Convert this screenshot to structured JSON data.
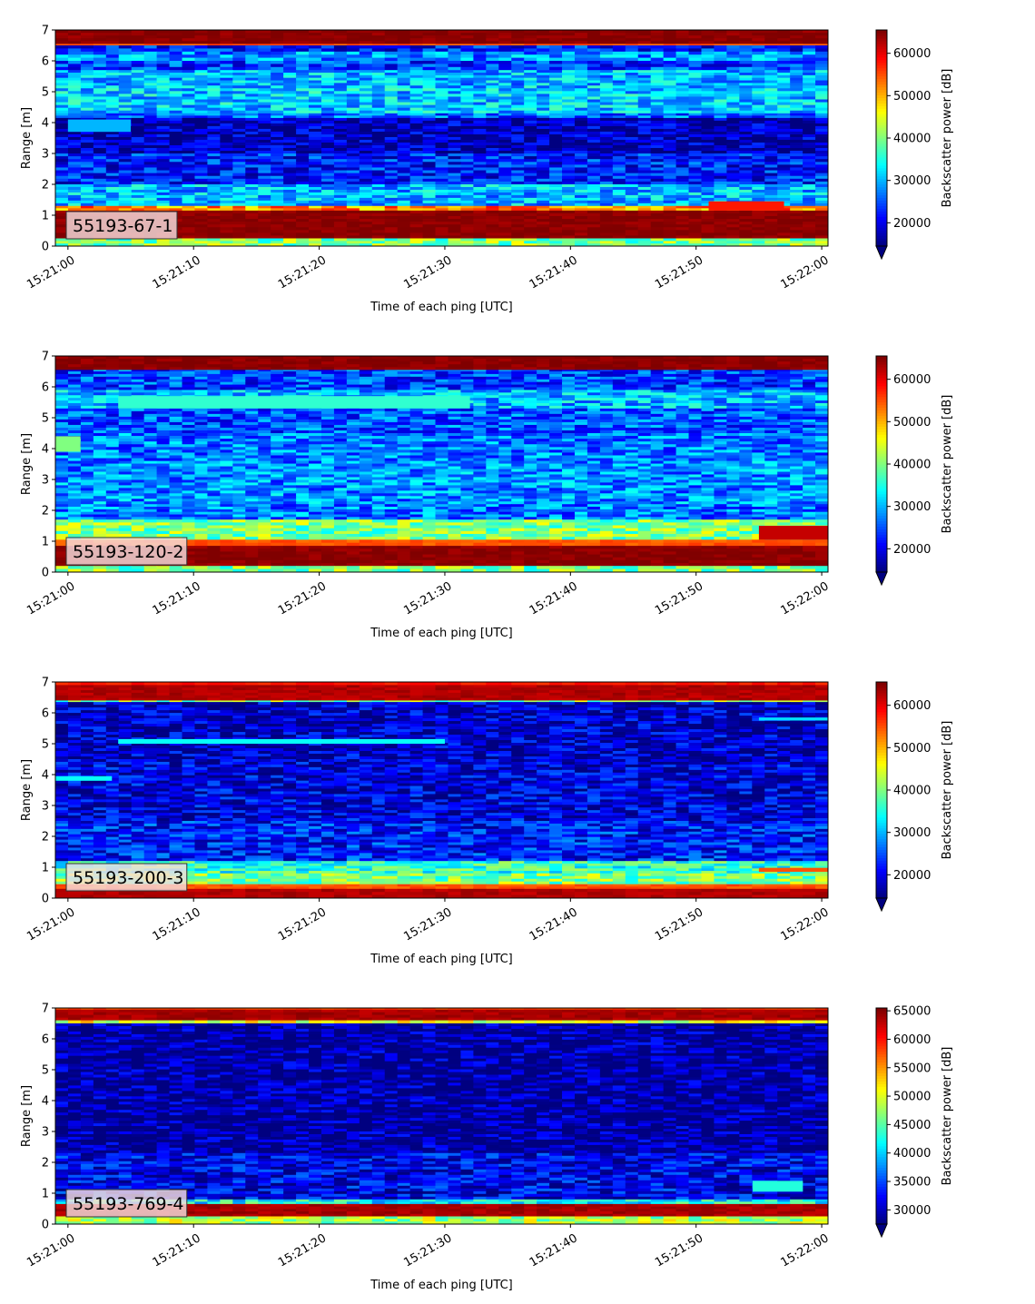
{
  "chart_data": [
    {
      "type": "heatmap",
      "label": "55193-67-1",
      "xlabel": "Time of each ping [UTC]",
      "ylabel": "Range [m]",
      "colorbar_label": "Backscatter power [dB]",
      "colormap": "jet",
      "x_ticks": [
        "15:21:00",
        "15:21:10",
        "15:21:20",
        "15:21:30",
        "15:21:40",
        "15:21:50",
        "15:22:00"
      ],
      "x_range": [
        "15:20:59",
        "15:22:00.5"
      ],
      "ylim": [
        0,
        7
      ],
      "y_ticks": [
        0,
        1,
        2,
        3,
        4,
        5,
        6,
        7
      ],
      "color_range": [
        14500,
        65500
      ],
      "colorbar_ticks": [
        20000,
        30000,
        40000,
        50000,
        60000
      ],
      "range_profile": [
        {
          "y": [
            6.55,
            7.0
          ],
          "value": 65000
        },
        {
          "y": [
            6.5,
            6.55
          ],
          "value": 55000
        },
        {
          "y": [
            6.3,
            6.5
          ],
          "value": 22000
        },
        {
          "y": [
            6.0,
            6.3
          ],
          "value": 28000
        },
        {
          "y": [
            5.7,
            6.0
          ],
          "value": 24000
        },
        {
          "y": [
            5.2,
            5.7
          ],
          "value": 30000
        },
        {
          "y": [
            4.3,
            5.2
          ],
          "value": 31000
        },
        {
          "y": [
            4.15,
            4.3
          ],
          "value": 26000
        },
        {
          "y": [
            3.0,
            4.15
          ],
          "value": 17000
        },
        {
          "y": [
            2.0,
            3.0
          ],
          "value": 22000
        },
        {
          "y": [
            1.3,
            2.0
          ],
          "value": 30000
        },
        {
          "y": [
            1.15,
            1.3
          ],
          "value": 52000
        },
        {
          "y": [
            0.25,
            1.15
          ],
          "value": 65000
        },
        {
          "y": [
            0.0,
            0.25
          ],
          "value": 40000
        }
      ],
      "features": [
        {
          "t": [
            0,
            5
          ],
          "y": [
            3.7,
            4.1
          ],
          "value": 30000
        },
        {
          "t": [
            51,
            57
          ],
          "y": [
            1.15,
            1.45
          ],
          "value": 58000
        }
      ]
    },
    {
      "type": "heatmap",
      "label": "55193-120-2",
      "xlabel": "Time of each ping [UTC]",
      "ylabel": "Range [m]",
      "colorbar_label": "Backscatter power [dB]",
      "colormap": "jet",
      "x_ticks": [
        "15:21:00",
        "15:21:10",
        "15:21:20",
        "15:21:30",
        "15:21:40",
        "15:21:50",
        "15:22:00"
      ],
      "x_range": [
        "15:20:59",
        "15:22:00.5"
      ],
      "ylim": [
        0,
        7
      ],
      "y_ticks": [
        0,
        1,
        2,
        3,
        4,
        5,
        6,
        7
      ],
      "color_range": [
        14500,
        65500
      ],
      "colorbar_ticks": [
        20000,
        30000,
        40000,
        50000,
        60000
      ],
      "range_profile": [
        {
          "y": [
            6.55,
            7.0
          ],
          "value": 65000
        },
        {
          "y": [
            6.5,
            6.55
          ],
          "value": 24000
        },
        {
          "y": [
            5.9,
            6.5
          ],
          "value": 24000
        },
        {
          "y": [
            5.3,
            5.9
          ],
          "value": 30000
        },
        {
          "y": [
            4.5,
            5.3
          ],
          "value": 25000
        },
        {
          "y": [
            3.6,
            4.5
          ],
          "value": 27000
        },
        {
          "y": [
            2.2,
            3.6
          ],
          "value": 28000
        },
        {
          "y": [
            1.7,
            2.2
          ],
          "value": 27000
        },
        {
          "y": [
            1.05,
            1.7
          ],
          "value": 40000
        },
        {
          "y": [
            0.85,
            1.05
          ],
          "value": 55000
        },
        {
          "y": [
            0.2,
            0.85
          ],
          "value": 65000
        },
        {
          "y": [
            0.0,
            0.2
          ],
          "value": 40000
        }
      ],
      "features": [
        {
          "t": [
            4,
            32
          ],
          "y": [
            5.3,
            5.7
          ],
          "value": 36000
        },
        {
          "t": [
            -1,
            1
          ],
          "y": [
            3.9,
            4.4
          ],
          "value": 40000
        },
        {
          "t": [
            55,
            61
          ],
          "y": [
            1.05,
            1.5
          ],
          "value": 62000
        }
      ]
    },
    {
      "type": "heatmap",
      "label": "55193-200-3",
      "xlabel": "Time of each ping [UTC]",
      "ylabel": "Range [m]",
      "colorbar_label": "Backscatter power [dB]",
      "colormap": "jet",
      "x_ticks": [
        "15:21:00",
        "15:21:10",
        "15:21:20",
        "15:21:30",
        "15:21:40",
        "15:21:50",
        "15:22:00"
      ],
      "x_range": [
        "15:20:59",
        "15:22:00.5"
      ],
      "ylim": [
        0,
        7
      ],
      "y_ticks": [
        0,
        1,
        2,
        3,
        4,
        5,
        6,
        7
      ],
      "color_range": [
        14500,
        65500
      ],
      "colorbar_ticks": [
        20000,
        30000,
        40000,
        50000,
        60000
      ],
      "range_profile": [
        {
          "y": [
            6.9,
            7.0
          ],
          "value": 58000
        },
        {
          "y": [
            6.4,
            6.9
          ],
          "value": 63000
        },
        {
          "y": [
            6.35,
            6.4
          ],
          "value": 40000
        },
        {
          "y": [
            4.5,
            6.35
          ],
          "value": 18000
        },
        {
          "y": [
            2.5,
            4.5
          ],
          "value": 19000
        },
        {
          "y": [
            1.2,
            2.5
          ],
          "value": 22000
        },
        {
          "y": [
            0.8,
            1.2
          ],
          "value": 36000
        },
        {
          "y": [
            0.45,
            0.8
          ],
          "value": 40000
        },
        {
          "y": [
            0.3,
            0.45
          ],
          "value": 55000
        },
        {
          "y": [
            0.0,
            0.3
          ],
          "value": 63000
        }
      ],
      "features": [
        {
          "t": [
            4,
            30
          ],
          "y": [
            5.0,
            5.15
          ],
          "value": 34000
        },
        {
          "t": [
            -1,
            3.5
          ],
          "y": [
            3.8,
            3.95
          ],
          "value": 34000
        },
        {
          "t": [
            55,
            61
          ],
          "y": [
            0.85,
            0.98
          ],
          "value": 55000
        },
        {
          "t": [
            55,
            61
          ],
          "y": [
            5.75,
            5.85
          ],
          "value": 32000
        }
      ]
    },
    {
      "type": "heatmap",
      "label": "55193-769-4",
      "xlabel": "Time of each ping [UTC]",
      "ylabel": "Range [m]",
      "colorbar_label": "Backscatter power [dB]",
      "colormap": "jet",
      "x_ticks": [
        "15:21:00",
        "15:21:10",
        "15:21:20",
        "15:21:30",
        "15:21:40",
        "15:21:50",
        "15:22:00"
      ],
      "x_range": [
        "15:20:59",
        "15:22:00.5"
      ],
      "ylim": [
        0,
        7
      ],
      "y_ticks": [
        0,
        1,
        2,
        3,
        4,
        5,
        6,
        7
      ],
      "color_range": [
        27500,
        65500
      ],
      "colorbar_ticks": [
        30000,
        35000,
        40000,
        45000,
        50000,
        55000,
        60000,
        65000
      ],
      "range_profile": [
        {
          "y": [
            6.95,
            7.0
          ],
          "value": 58000
        },
        {
          "y": [
            6.6,
            6.95
          ],
          "value": 64000
        },
        {
          "y": [
            6.5,
            6.6
          ],
          "value": 50000
        },
        {
          "y": [
            2.3,
            6.5
          ],
          "value": 28500
        },
        {
          "y": [
            0.8,
            2.3
          ],
          "value": 31500
        },
        {
          "y": [
            0.65,
            0.8
          ],
          "value": 42000
        },
        {
          "y": [
            0.25,
            0.65
          ],
          "value": 64000
        },
        {
          "y": [
            0.0,
            0.25
          ],
          "value": 48000
        }
      ],
      "features": [
        {
          "t": [
            54.5,
            58.5
          ],
          "y": [
            1.05,
            1.4
          ],
          "value": 43000
        }
      ]
    }
  ]
}
